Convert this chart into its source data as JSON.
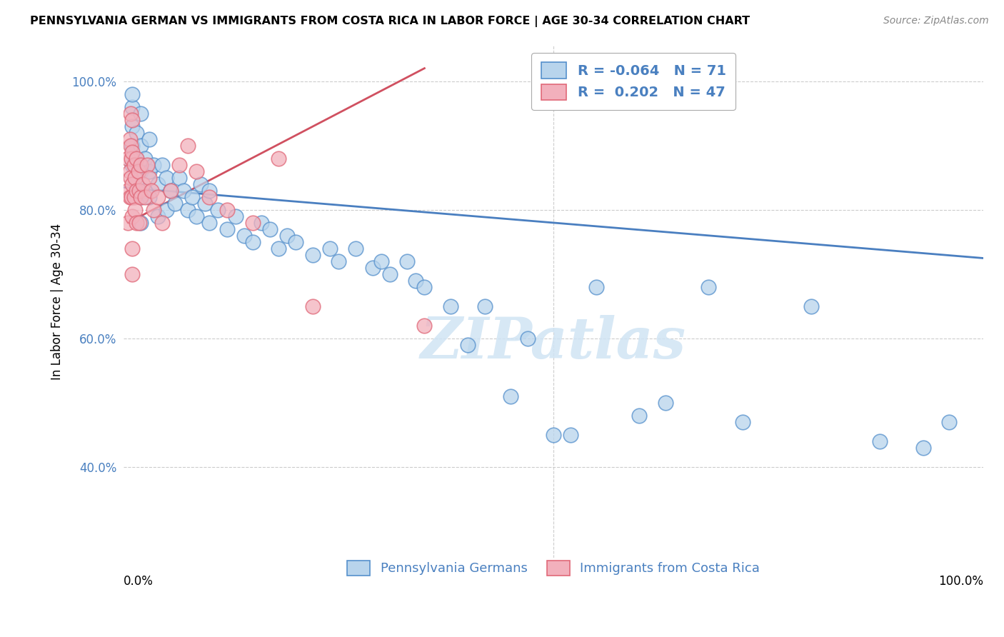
{
  "title": "PENNSYLVANIA GERMAN VS IMMIGRANTS FROM COSTA RICA IN LABOR FORCE | AGE 30-34 CORRELATION CHART",
  "source": "Source: ZipAtlas.com",
  "ylabel": "In Labor Force | Age 30-34",
  "xlim": [
    0.0,
    1.0
  ],
  "ylim": [
    0.26,
    1.055
  ],
  "yticks": [
    0.4,
    0.6,
    0.8,
    1.0
  ],
  "ytick_labels": [
    "40.0%",
    "60.0%",
    "80.0%",
    "100.0%"
  ],
  "legend_blue_r": "-0.064",
  "legend_blue_n": "71",
  "legend_pink_r": "0.202",
  "legend_pink_n": "47",
  "blue_color": "#b8d4ec",
  "pink_color": "#f2b0bc",
  "blue_edge_color": "#5590cc",
  "pink_edge_color": "#e06878",
  "blue_line_color": "#4a7fc0",
  "pink_line_color": "#d05060",
  "background_color": "#ffffff",
  "grid_color": "#cccccc",
  "watermark_color": "#d0e4f4",
  "blue_scatter_x": [
    0.01,
    0.01,
    0.01,
    0.01,
    0.01,
    0.015,
    0.015,
    0.015,
    0.02,
    0.02,
    0.02,
    0.02,
    0.02,
    0.025,
    0.025,
    0.03,
    0.03,
    0.03,
    0.035,
    0.04,
    0.04,
    0.045,
    0.05,
    0.05,
    0.055,
    0.06,
    0.065,
    0.07,
    0.075,
    0.08,
    0.085,
    0.09,
    0.095,
    0.1,
    0.1,
    0.11,
    0.12,
    0.13,
    0.14,
    0.15,
    0.16,
    0.17,
    0.18,
    0.19,
    0.2,
    0.22,
    0.24,
    0.25,
    0.27,
    0.29,
    0.3,
    0.31,
    0.33,
    0.34,
    0.35,
    0.38,
    0.4,
    0.42,
    0.45,
    0.47,
    0.5,
    0.52,
    0.55,
    0.6,
    0.63,
    0.68,
    0.72,
    0.8,
    0.88,
    0.93,
    0.96
  ],
  "blue_scatter_y": [
    0.96,
    0.93,
    0.9,
    0.87,
    0.98,
    0.92,
    0.88,
    0.84,
    0.95,
    0.9,
    0.86,
    0.82,
    0.78,
    0.88,
    0.83,
    0.91,
    0.86,
    0.82,
    0.87,
    0.84,
    0.79,
    0.87,
    0.85,
    0.8,
    0.83,
    0.81,
    0.85,
    0.83,
    0.8,
    0.82,
    0.79,
    0.84,
    0.81,
    0.83,
    0.78,
    0.8,
    0.77,
    0.79,
    0.76,
    0.75,
    0.78,
    0.77,
    0.74,
    0.76,
    0.75,
    0.73,
    0.74,
    0.72,
    0.74,
    0.71,
    0.72,
    0.7,
    0.72,
    0.69,
    0.68,
    0.65,
    0.59,
    0.65,
    0.51,
    0.6,
    0.45,
    0.45,
    0.68,
    0.48,
    0.5,
    0.68,
    0.47,
    0.65,
    0.44,
    0.43,
    0.47
  ],
  "pink_scatter_x": [
    0.005,
    0.005,
    0.005,
    0.007,
    0.007,
    0.007,
    0.008,
    0.008,
    0.008,
    0.009,
    0.009,
    0.01,
    0.01,
    0.01,
    0.01,
    0.01,
    0.01,
    0.012,
    0.012,
    0.013,
    0.013,
    0.015,
    0.015,
    0.015,
    0.017,
    0.018,
    0.018,
    0.02,
    0.02,
    0.022,
    0.025,
    0.027,
    0.03,
    0.032,
    0.035,
    0.04,
    0.045,
    0.055,
    0.065,
    0.075,
    0.085,
    0.1,
    0.12,
    0.15,
    0.18,
    0.22,
    0.35
  ],
  "pink_scatter_y": [
    0.88,
    0.83,
    0.78,
    0.91,
    0.86,
    0.82,
    0.95,
    0.9,
    0.85,
    0.88,
    0.82,
    0.94,
    0.89,
    0.84,
    0.79,
    0.74,
    0.7,
    0.87,
    0.82,
    0.85,
    0.8,
    0.88,
    0.83,
    0.78,
    0.86,
    0.83,
    0.78,
    0.87,
    0.82,
    0.84,
    0.82,
    0.87,
    0.85,
    0.83,
    0.8,
    0.82,
    0.78,
    0.83,
    0.87,
    0.9,
    0.86,
    0.82,
    0.8,
    0.78,
    0.88,
    0.65,
    0.62
  ],
  "blue_trendline_x": [
    0.0,
    1.0
  ],
  "blue_trendline_y": [
    0.835,
    0.725
  ],
  "pink_trendline_x": [
    0.005,
    0.35
  ],
  "pink_trendline_y": [
    0.78,
    1.02
  ]
}
